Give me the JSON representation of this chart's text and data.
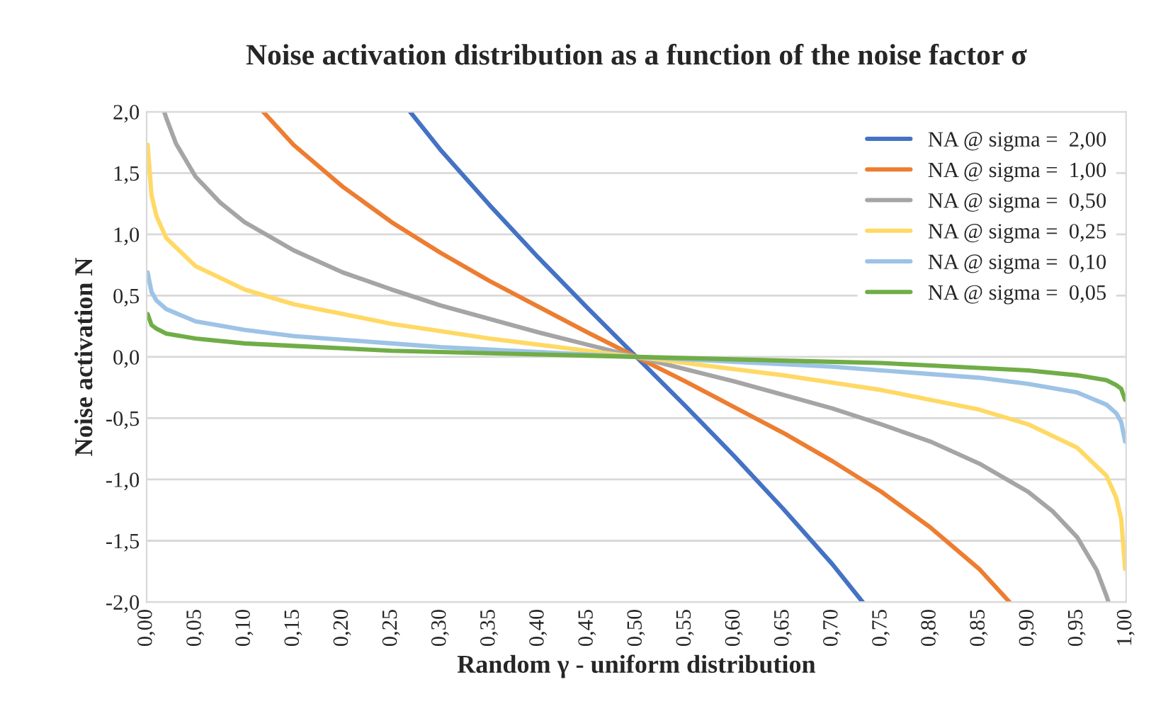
{
  "chart_data": {
    "type": "line",
    "title": "Noise activation distribution as a function of the noise factor σ",
    "xlabel": "Random γ - uniform distribution",
    "ylabel": "Noise activation N",
    "xlim": [
      0,
      1
    ],
    "xticks": [
      {
        "value": 0,
        "label": "0,00"
      },
      {
        "value": 0.05,
        "label": "0,05"
      },
      {
        "value": 0.1,
        "label": "0,10"
      },
      {
        "value": 0.15,
        "label": "0,15"
      },
      {
        "value": 0.2,
        "label": "0,20"
      },
      {
        "value": 0.25,
        "label": "0,25"
      },
      {
        "value": 0.3,
        "label": "0,30"
      },
      {
        "value": 0.35,
        "label": "0,35"
      },
      {
        "value": 0.4,
        "label": "0,40"
      },
      {
        "value": 0.45,
        "label": "0,45"
      },
      {
        "value": 0.5,
        "label": "0,50"
      },
      {
        "value": 0.55,
        "label": "0,55"
      },
      {
        "value": 0.6,
        "label": "0,60"
      },
      {
        "value": 0.65,
        "label": "0,65"
      },
      {
        "value": 0.7,
        "label": "0,70"
      },
      {
        "value": 0.75,
        "label": "0,75"
      },
      {
        "value": 0.8,
        "label": "0,80"
      },
      {
        "value": 0.85,
        "label": "0,85"
      },
      {
        "value": 0.9,
        "label": "0,90"
      },
      {
        "value": 0.95,
        "label": "0,95"
      },
      {
        "value": 1,
        "label": "1,00"
      }
    ],
    "ylim": [
      -2,
      2
    ],
    "yticks": [
      {
        "value": -2,
        "label": "-2,0"
      },
      {
        "value": -1.5,
        "label": "-1,5"
      },
      {
        "value": -1,
        "label": "-1,0"
      },
      {
        "value": -0.5,
        "label": "-0,5"
      },
      {
        "value": 0,
        "label": "0,0"
      },
      {
        "value": 0.5,
        "label": "0,5"
      },
      {
        "value": 1,
        "label": "1,0"
      },
      {
        "value": 1.5,
        "label": "1,5"
      },
      {
        "value": 2,
        "label": "2,0"
      }
    ],
    "grid": "y",
    "legend": "top right",
    "marker": "none",
    "line_style": "solid",
    "series": [
      {
        "name": "NA @ sigma =  2,00",
        "color": "#4472c4",
        "x": [
          0.269,
          0.3,
          0.35,
          0.4,
          0.45,
          0.5,
          0.55,
          0.6,
          0.65,
          0.7,
          0.731
        ],
        "values": [
          2.0,
          1.69,
          1.24,
          0.81,
          0.4,
          0,
          -0.4,
          -0.81,
          -1.24,
          -1.69,
          -2.0
        ]
      },
      {
        "name": "NA @ sigma =  1,00",
        "color": "#ed7d31",
        "x": [
          0.119,
          0.15,
          0.2,
          0.25,
          0.3,
          0.35,
          0.4,
          0.45,
          0.5,
          0.55,
          0.6,
          0.65,
          0.7,
          0.75,
          0.8,
          0.85,
          0.881
        ],
        "values": [
          2.0,
          1.73,
          1.39,
          1.1,
          0.85,
          0.62,
          0.41,
          0.2,
          0,
          -0.2,
          -0.41,
          -0.62,
          -0.85,
          -1.1,
          -1.39,
          -1.73,
          -2.0
        ]
      },
      {
        "name": "NA @ sigma =  0,50",
        "color": "#a5a5a5",
        "x": [
          0.018,
          0.02,
          0.03,
          0.05,
          0.075,
          0.1,
          0.15,
          0.2,
          0.25,
          0.3,
          0.35,
          0.4,
          0.45,
          0.5,
          0.55,
          0.6,
          0.65,
          0.7,
          0.75,
          0.8,
          0.85,
          0.9,
          0.925,
          0.95,
          0.97,
          0.98,
          0.982
        ],
        "values": [
          2.0,
          1.95,
          1.74,
          1.47,
          1.26,
          1.1,
          0.87,
          0.69,
          0.55,
          0.42,
          0.31,
          0.2,
          0.1,
          0,
          -0.1,
          -0.2,
          -0.31,
          -0.42,
          -0.55,
          -0.69,
          -0.87,
          -1.1,
          -1.26,
          -1.47,
          -1.74,
          -1.95,
          -2.0
        ]
      },
      {
        "name": "NA @ sigma =  0,25",
        "color": "#ffd966",
        "x": [
          0.001,
          0.005,
          0.01,
          0.02,
          0.05,
          0.1,
          0.15,
          0.2,
          0.25,
          0.3,
          0.35,
          0.4,
          0.45,
          0.5,
          0.55,
          0.6,
          0.65,
          0.7,
          0.75,
          0.8,
          0.85,
          0.9,
          0.95,
          0.98,
          0.99,
          0.995,
          0.999
        ],
        "values": [
          1.73,
          1.32,
          1.15,
          0.97,
          0.74,
          0.55,
          0.43,
          0.35,
          0.27,
          0.21,
          0.15,
          0.1,
          0.05,
          0,
          -0.05,
          -0.1,
          -0.15,
          -0.21,
          -0.27,
          -0.35,
          -0.43,
          -0.55,
          -0.74,
          -0.97,
          -1.15,
          -1.32,
          -1.73
        ]
      },
      {
        "name": "NA @ sigma =  0,10",
        "color": "#9dc3e6",
        "x": [
          0.001,
          0.005,
          0.01,
          0.02,
          0.05,
          0.1,
          0.15,
          0.2,
          0.25,
          0.3,
          0.35,
          0.4,
          0.45,
          0.5,
          0.55,
          0.6,
          0.65,
          0.7,
          0.75,
          0.8,
          0.85,
          0.9,
          0.95,
          0.98,
          0.99,
          0.995,
          0.999
        ],
        "values": [
          0.69,
          0.53,
          0.46,
          0.39,
          0.29,
          0.22,
          0.17,
          0.14,
          0.11,
          0.08,
          0.06,
          0.04,
          0.02,
          0,
          -0.02,
          -0.04,
          -0.06,
          -0.08,
          -0.11,
          -0.14,
          -0.17,
          -0.22,
          -0.29,
          -0.39,
          -0.46,
          -0.53,
          -0.69
        ]
      },
      {
        "name": "NA @ sigma =  0,05",
        "color": "#70ad47",
        "x": [
          0.001,
          0.005,
          0.01,
          0.02,
          0.05,
          0.1,
          0.15,
          0.2,
          0.25,
          0.3,
          0.35,
          0.4,
          0.45,
          0.5,
          0.55,
          0.6,
          0.65,
          0.7,
          0.75,
          0.8,
          0.85,
          0.9,
          0.95,
          0.98,
          0.99,
          0.995,
          0.999
        ],
        "values": [
          0.35,
          0.26,
          0.23,
          0.19,
          0.15,
          0.11,
          0.09,
          0.07,
          0.05,
          0.04,
          0.03,
          0.02,
          0.01,
          0,
          -0.01,
          -0.02,
          -0.03,
          -0.04,
          -0.05,
          -0.07,
          -0.09,
          -0.11,
          -0.15,
          -0.19,
          -0.23,
          -0.26,
          -0.35
        ]
      }
    ]
  }
}
